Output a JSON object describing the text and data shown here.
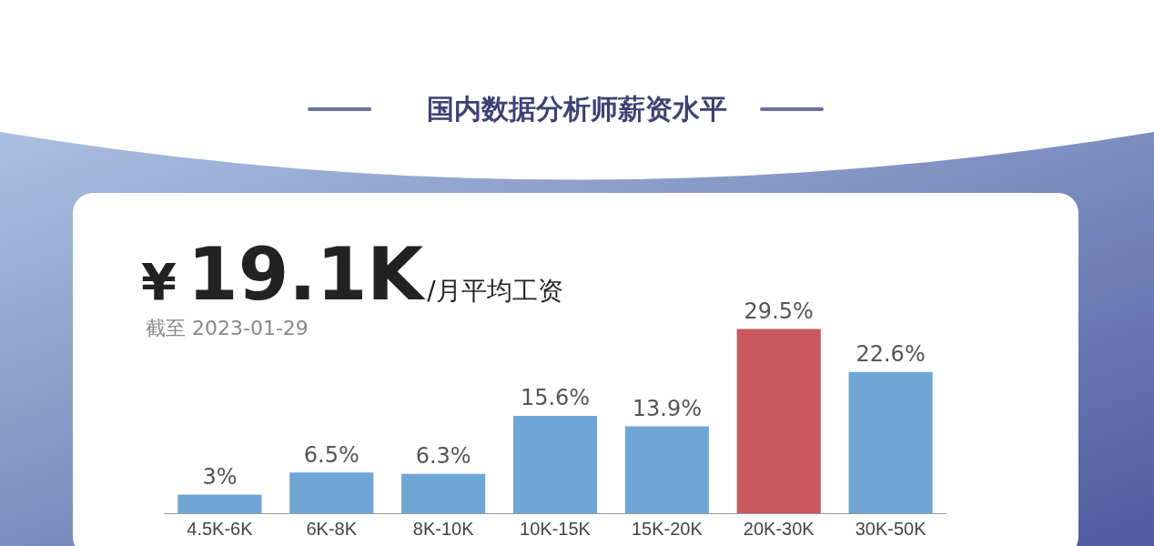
{
  "chart_data": {
    "type": "bar",
    "title": "国内数据分析师薪资水平",
    "annotations": [
      "¥",
      "19.1K",
      "/月平均工资",
      "截至 2023-01-29"
    ],
    "categories": [
      "4.5K-6K",
      "6K-8K",
      "8K-10K",
      "10K-15K",
      "15K-20K",
      "20K-30K",
      "30K-50K"
    ],
    "values": [
      3,
      6.5,
      6.3,
      15.6,
      13.9,
      29.5,
      22.6
    ],
    "colors": [
      "#6fa6d6",
      "#6fa6d6",
      "#6fa6d6",
      "#6fa6d6",
      "#6fa6d6",
      "#c9585f",
      "#6fa6d6"
    ],
    "value_labels": [
      "3%",
      "6.5%",
      "6.3%",
      "15.6%",
      "13.9%",
      "29.5%",
      "22.6%"
    ],
    "grid": false,
    "legend": false
  }
}
